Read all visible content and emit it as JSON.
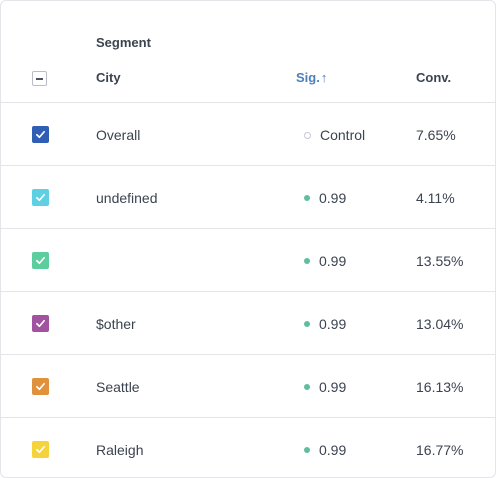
{
  "header": {
    "group_label": "Segment",
    "city_label": "City",
    "sig_label": "Sig.",
    "sig_sort_icon": "arrow-up-icon",
    "conv_label": "Conv."
  },
  "rows": [
    {
      "city": "Overall",
      "sig": "Control",
      "sig_dot": "hollow",
      "conv": "7.65%",
      "color": "#2f5fb4"
    },
    {
      "city": "undefined",
      "sig": "0.99",
      "sig_dot": "filled",
      "conv": "4.11%",
      "color": "#5fd0e3"
    },
    {
      "city": "",
      "sig": "0.99",
      "sig_dot": "filled",
      "conv": "13.55%",
      "color": "#5cce9d"
    },
    {
      "city": "$other",
      "sig": "0.99",
      "sig_dot": "filled",
      "conv": "13.04%",
      "color": "#a1539f"
    },
    {
      "city": "Seattle",
      "sig": "0.99",
      "sig_dot": "filled",
      "conv": "16.13%",
      "color": "#e0913c"
    },
    {
      "city": "Raleigh",
      "sig": "0.99",
      "sig_dot": "filled",
      "conv": "16.77%",
      "color": "#f5d43b"
    }
  ],
  "colors": {
    "sort_accent": "#4a7fc0",
    "sig_dot": "#5fbf9c",
    "border": "#e3e5e9"
  }
}
